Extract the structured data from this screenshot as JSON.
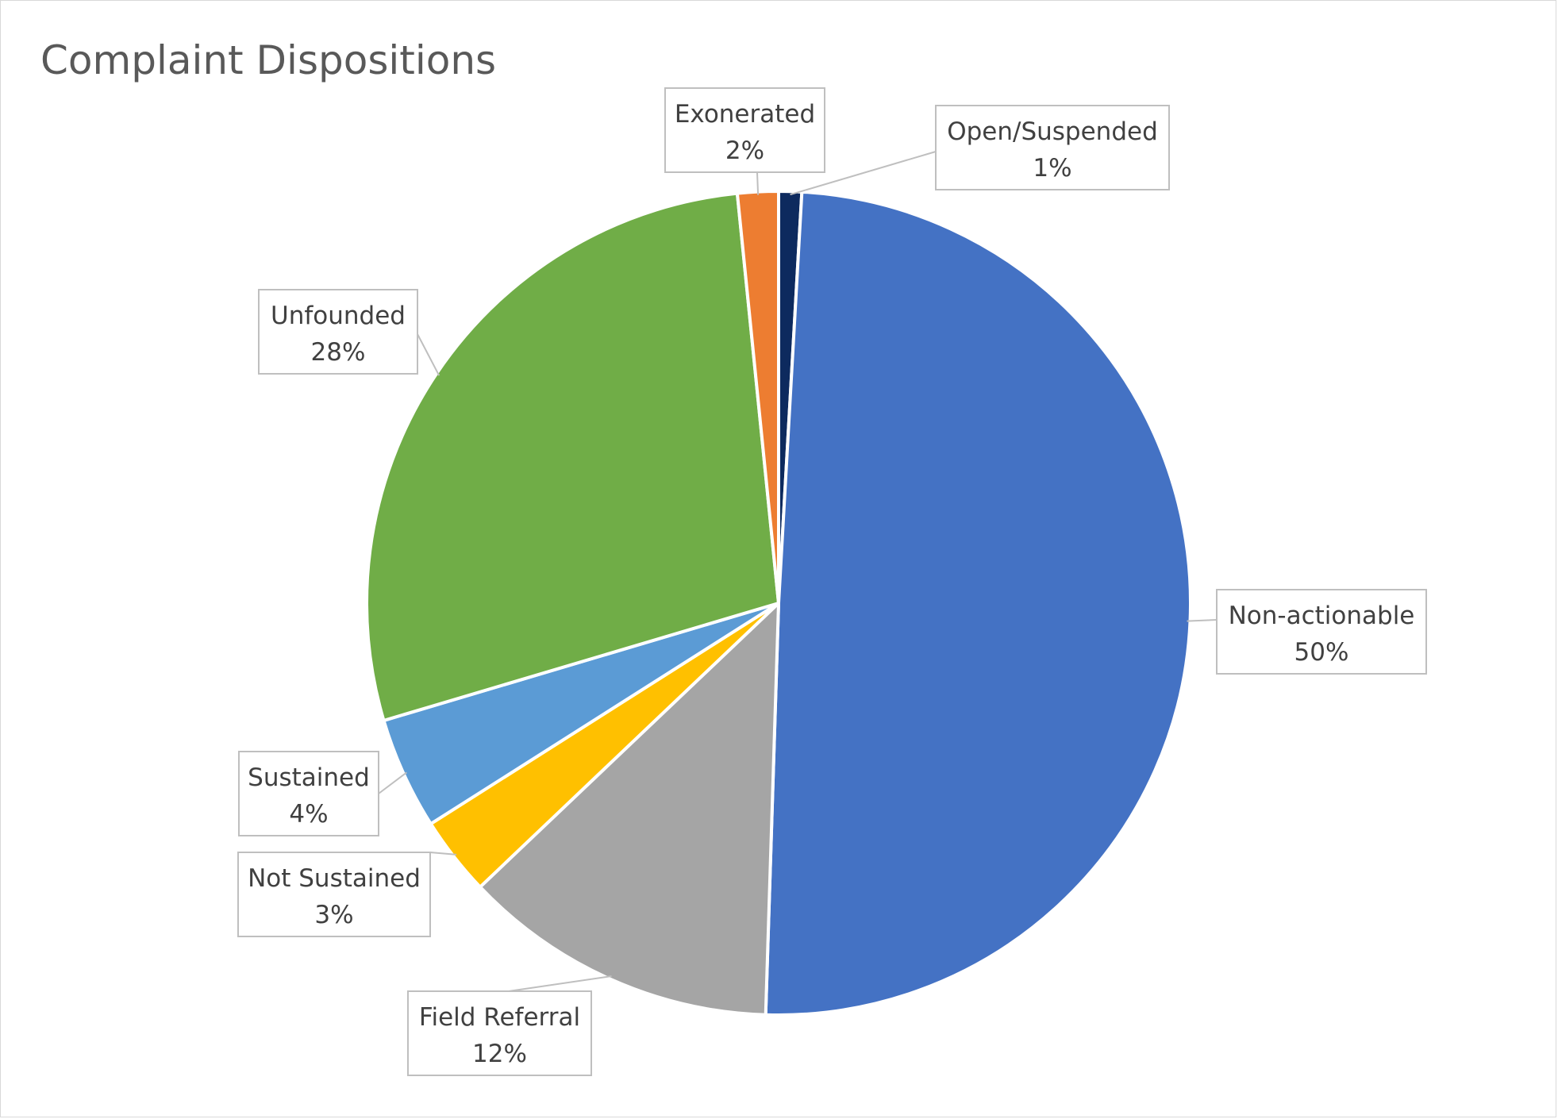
{
  "chart_data": {
    "type": "pie",
    "title": "Complaint Dispositions",
    "start_angle_deg": 0,
    "direction": "clockwise",
    "slices": [
      {
        "name": "Open/Suspended",
        "value": 0.9,
        "label": "1%",
        "color": "#0d2a5e"
      },
      {
        "name": "Non-actionable",
        "value": 49.6,
        "label": "50%",
        "color": "#4472c4"
      },
      {
        "name": "Field Referral",
        "value": 12.4,
        "label": "12%",
        "color": "#a5a5a5"
      },
      {
        "name": "Not Sustained",
        "value": 3.1,
        "label": "3%",
        "color": "#ffc000"
      },
      {
        "name": "Sustained",
        "value": 4.4,
        "label": "4%",
        "color": "#5b9bd5"
      },
      {
        "name": "Unfounded",
        "value": 28.0,
        "label": "28%",
        "color": "#70ad47"
      },
      {
        "name": "Exonerated",
        "value": 1.6,
        "label": "2%",
        "color": "#ed7d31"
      }
    ],
    "data_labels": "name and percentage in callouts",
    "legend": "none"
  }
}
